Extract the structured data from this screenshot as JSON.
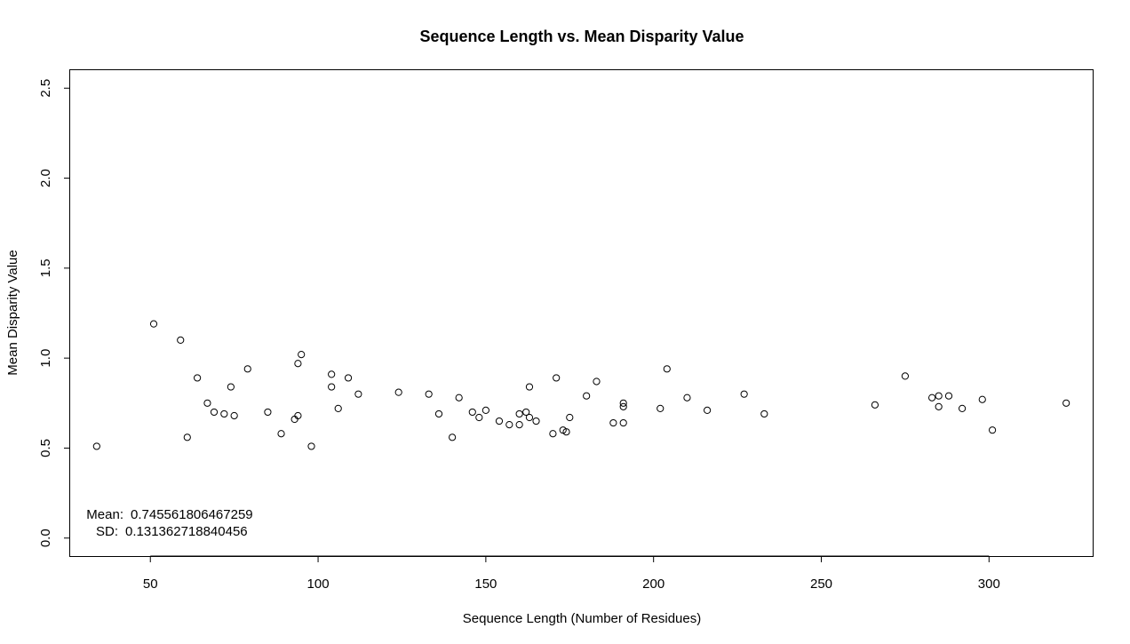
{
  "chart_data": {
    "type": "scatter",
    "title": "Sequence Length vs. Mean Disparity Value",
    "xlabel": "Sequence Length (Number of Residues)",
    "ylabel": "Mean Disparity Value",
    "xlim": [
      26.1,
      330.9
    ],
    "ylim": [
      -0.1,
      2.6
    ],
    "x_ticks": [
      50,
      100,
      150,
      200,
      250,
      300
    ],
    "x_tick_labels": [
      "50",
      "100",
      "150",
      "200",
      "250",
      "300"
    ],
    "y_ticks": [
      0.0,
      0.5,
      1.0,
      1.5,
      2.0,
      2.5
    ],
    "y_tick_labels": [
      "0.0",
      "0.5",
      "1.0",
      "1.5",
      "2.0",
      "2.5"
    ],
    "grid": false,
    "marker": "open-circle",
    "annotation": {
      "mean_label": "Mean:",
      "mean_value": "0.745561806467259",
      "sd_label": "SD:",
      "sd_value": "0.131362718840456"
    },
    "series": [
      {
        "x": [
          34,
          51,
          59,
          61,
          64,
          67,
          69,
          72,
          74,
          75,
          79,
          85,
          89,
          93,
          94,
          94,
          95,
          98,
          104,
          104,
          106,
          109,
          112,
          124,
          133,
          136,
          140,
          142,
          146,
          148,
          150,
          154,
          157,
          160,
          160,
          162,
          163,
          163,
          165,
          170,
          171,
          173,
          174,
          175,
          180,
          183,
          188,
          191,
          191,
          191,
          202,
          204,
          210,
          216,
          227,
          233,
          266,
          275,
          283,
          285,
          285,
          288,
          292,
          298,
          301,
          323
        ],
        "y": [
          0.51,
          1.19,
          1.1,
          0.56,
          0.89,
          0.75,
          0.7,
          0.69,
          0.84,
          0.68,
          0.94,
          0.7,
          0.58,
          0.66,
          0.97,
          0.68,
          1.02,
          0.51,
          0.91,
          0.84,
          0.72,
          0.89,
          0.8,
          0.81,
          0.8,
          0.69,
          0.56,
          0.78,
          0.7,
          0.67,
          0.71,
          0.65,
          0.63,
          0.69,
          0.63,
          0.7,
          0.84,
          0.67,
          0.65,
          0.58,
          0.89,
          0.6,
          0.59,
          0.67,
          0.79,
          0.87,
          0.64,
          0.75,
          0.73,
          0.64,
          0.72,
          0.94,
          0.78,
          0.71,
          0.8,
          0.69,
          0.74,
          0.9,
          0.78,
          0.79,
          0.73,
          0.79,
          0.72,
          0.77,
          0.6,
          0.75
        ]
      }
    ]
  }
}
